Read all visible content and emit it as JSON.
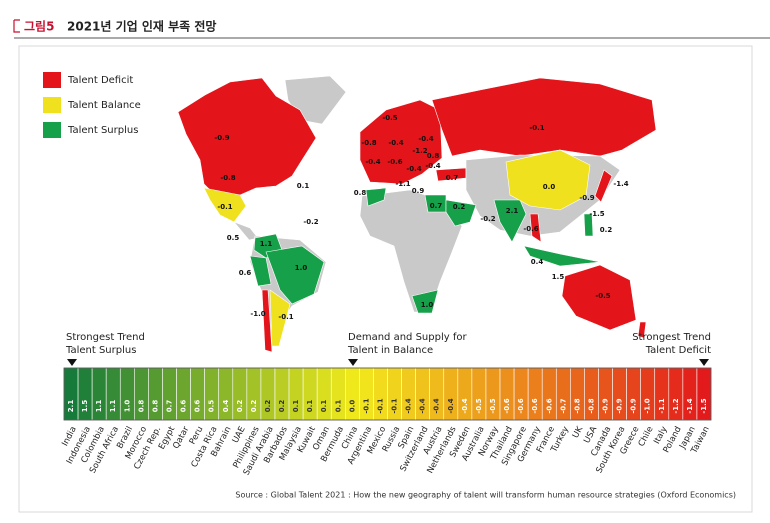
{
  "header": {
    "figure_label": "그림5",
    "title": "2021년 기업 인재 부족 전망"
  },
  "chart_data": [
    {
      "type": "map",
      "series": [
        {
          "name": "Talent Deficit",
          "color": "#e3151b"
        },
        {
          "name": "Talent Balance",
          "color": "#f0e11e"
        },
        {
          "name": "Talent Surplus",
          "color": "#17a04a"
        }
      ],
      "labels": [
        "-0.9",
        "-0.8",
        "0.1",
        "-0.1",
        "-0.2",
        "0.5",
        "1.1",
        "0.6",
        "1.0",
        "-1.0",
        "-0.1",
        "-0.5",
        "-0.8",
        "-0.4",
        "-0.4",
        "-0.4",
        "-0.6",
        "-1.2",
        "0.8",
        "-0.4",
        "-0.4",
        "0.7",
        "-1.1",
        "0.9",
        "0.8",
        "0.7",
        "0.2",
        "-0.2",
        "2.1",
        "-0.1",
        "0.0",
        "-1.4",
        "-0.9",
        "-1.5",
        "-0.6",
        "0.2",
        "0.4",
        "1.5",
        "-0.5",
        "1.0"
      ]
    },
    {
      "type": "scale_bar",
      "annotations": [
        [
          "Strongest Trend",
          "Talent Surplus"
        ],
        [
          "Demand and Supply for",
          "Talent in Balance"
        ],
        [
          "Strongest Trend",
          "Talent Deficit"
        ]
      ],
      "scale_colors": [
        "#157a3a",
        "#f2ea1c",
        "#e31a1c"
      ],
      "categories": [
        "India",
        "Indonesia",
        "Colombia",
        "South Africa",
        "Brazil",
        "Morocco",
        "Czech Rep.",
        "Egypt",
        "Qatar",
        "Peru",
        "Costa Rica",
        "Bahrain",
        "UAE",
        "Philippines",
        "Saudi Arabia",
        "Barbados",
        "Malaysia",
        "Kuwait",
        "Oman",
        "Bermuda",
        "China",
        "Argentina",
        "Mexico",
        "Russia",
        "Spain",
        "Switzerland",
        "Austria",
        "Netherlands",
        "Sweden",
        "Australia",
        "Norway",
        "Thailand",
        "Singapore",
        "Germany",
        "France",
        "Turkey",
        "UK",
        "USA",
        "Canada",
        "South Korea",
        "Greece",
        "Chile",
        "Italy",
        "Poland",
        "Japan",
        "Taiwan"
      ],
      "values": [
        2.1,
        1.5,
        1.1,
        1.1,
        1.0,
        0.8,
        0.8,
        0.7,
        0.6,
        0.6,
        0.5,
        0.4,
        0.2,
        0.2,
        0.2,
        0.2,
        0.1,
        0.1,
        0.1,
        0.1,
        0.0,
        -0.1,
        -0.1,
        -0.1,
        -0.4,
        -0.4,
        -0.4,
        -0.4,
        -0.4,
        -0.5,
        -0.5,
        -0.6,
        -0.6,
        -0.6,
        -0.6,
        -0.7,
        -0.8,
        -0.8,
        -0.9,
        -0.9,
        -0.9,
        -1.0,
        -1.1,
        -1.2,
        -1.4,
        -1.5
      ],
      "value_labels": [
        "2.1",
        "1.5",
        "1.1",
        "1.1",
        "1.0",
        "0.8",
        "0.8",
        "0.7",
        "0.6",
        "0.6",
        "0.5",
        "0.4",
        "0.2",
        "0.2",
        "0.2",
        "0.2",
        "0.1",
        "0.1",
        "0.1",
        "0.1",
        "0.0",
        "-0.1",
        "-0.1",
        "-0.1",
        "-0.4",
        "-0.4",
        "-0.4",
        "-0.4",
        "-0.4",
        "-0.5",
        "-0.5",
        "-0.6",
        "-0.6",
        "-0.6",
        "-0.6",
        "-0.7",
        "-0.8",
        "-0.8",
        "-0.9",
        "-0.9",
        "-0.9",
        "-1.0",
        "-1.1",
        "-1.2",
        "-1.4",
        "-1.5"
      ]
    }
  ],
  "source": "Source : Global Talent 2021 : How the new geography of talent will transform human resource strategies (Oxford Economics)"
}
